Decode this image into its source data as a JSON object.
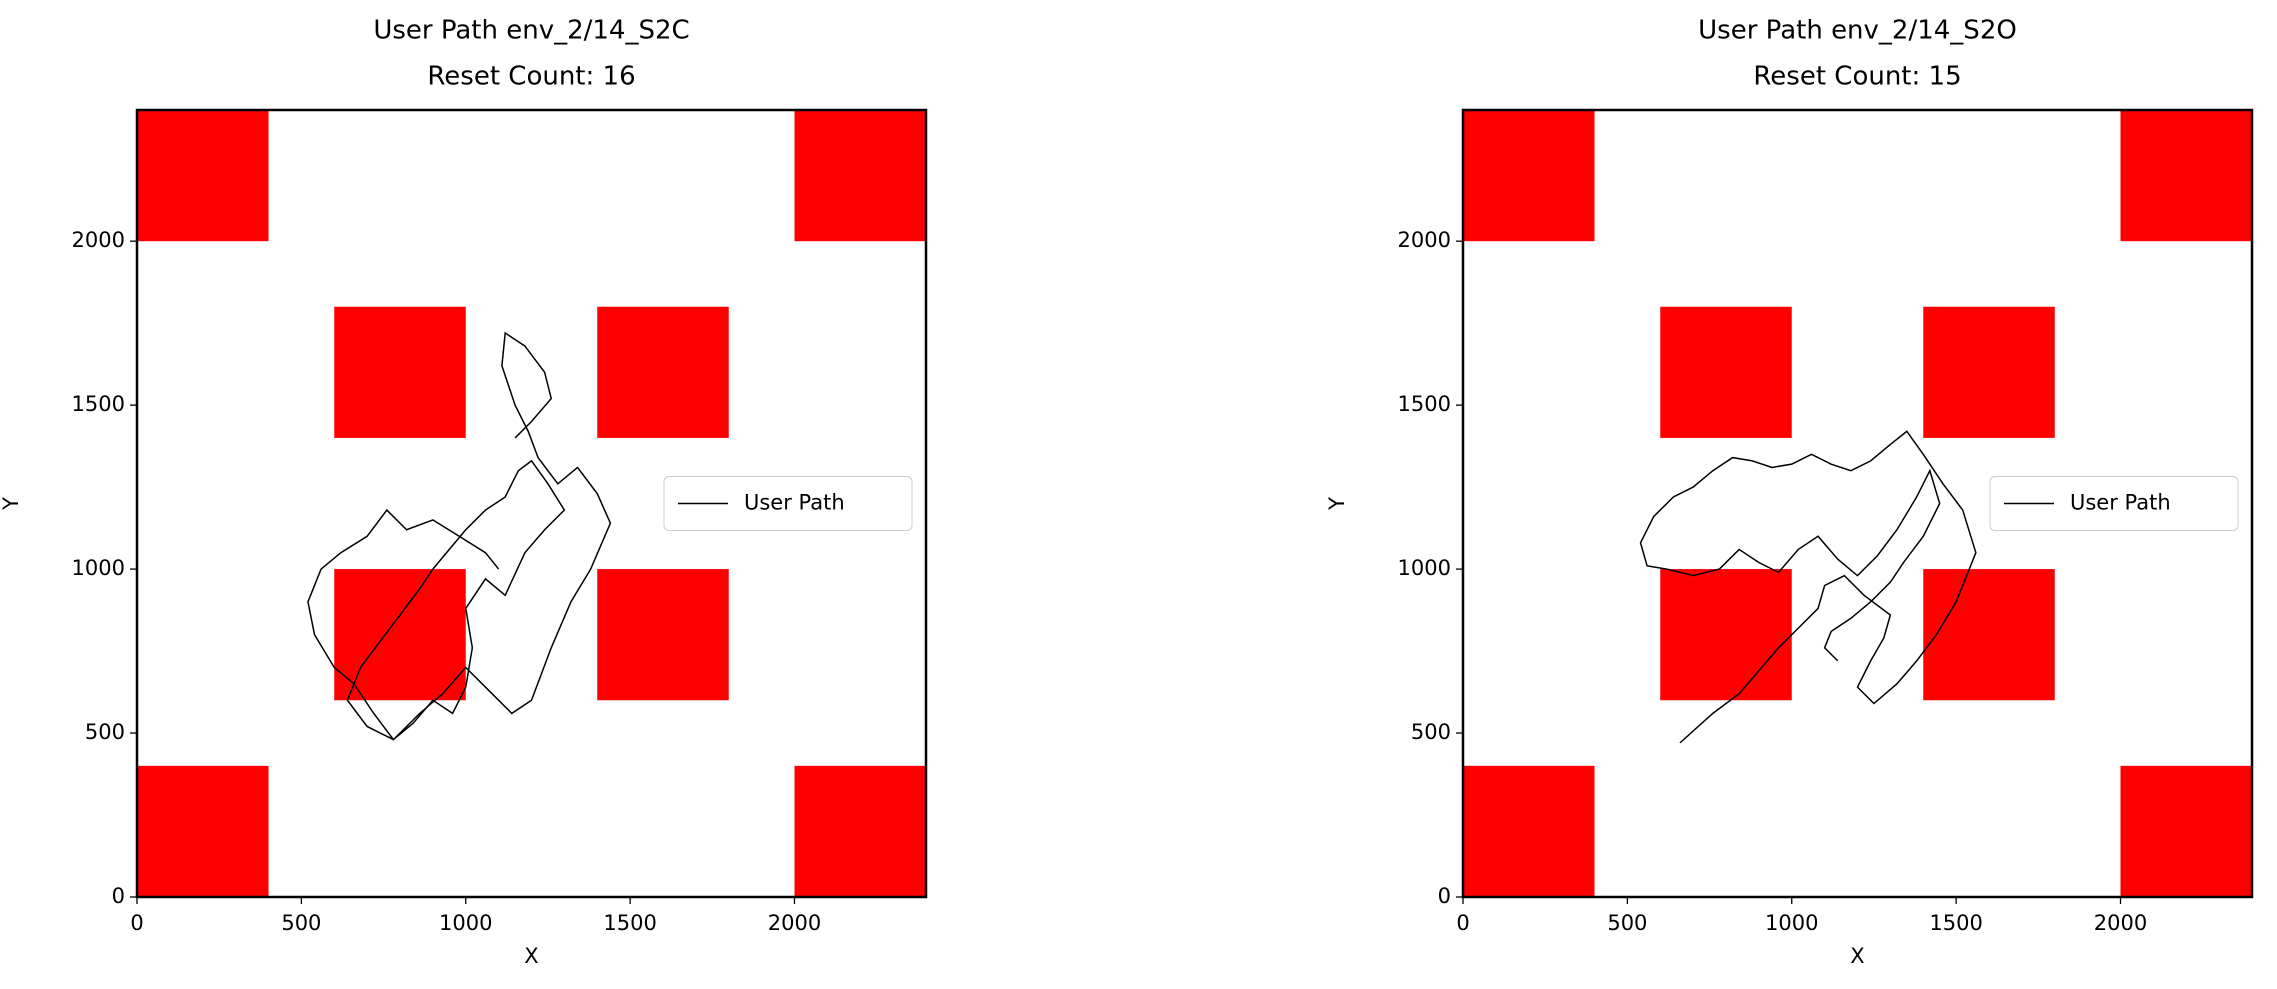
{
  "chart_data": [
    {
      "type": "line",
      "title": "User Path env_2/14_S2C",
      "subtitle": "Reset Count: 16",
      "x_label": "X",
      "y_label": "Y",
      "xlim": [
        0,
        2400
      ],
      "ylim": [
        0,
        2400
      ],
      "xticks": [
        0,
        500,
        1000,
        1500,
        2000
      ],
      "yticks": [
        0,
        500,
        1000,
        1500,
        2000
      ],
      "legend": "center right",
      "obstacle_color": "#ff0000",
      "obstacles": [
        {
          "x": [
            0,
            400
          ],
          "y": [
            2000,
            2400
          ]
        },
        {
          "x": [
            2000,
            2400
          ],
          "y": [
            2000,
            2400
          ]
        },
        {
          "x": [
            600,
            1000
          ],
          "y": [
            1400,
            1800
          ]
        },
        {
          "x": [
            1400,
            1800
          ],
          "y": [
            1400,
            1800
          ]
        },
        {
          "x": [
            600,
            1000
          ],
          "y": [
            600,
            1000
          ]
        },
        {
          "x": [
            1400,
            1800
          ],
          "y": [
            600,
            1000
          ]
        },
        {
          "x": [
            0,
            400
          ],
          "y": [
            0,
            400
          ]
        },
        {
          "x": [
            2000,
            2400
          ],
          "y": [
            0,
            400
          ]
        }
      ],
      "series": [
        {
          "name": "User Path",
          "color": "#000000",
          "x": [
            1100,
            1060,
            980,
            900,
            820,
            760,
            700,
            620,
            560,
            520,
            540,
            600,
            660,
            720,
            780,
            840,
            900,
            960,
            1000,
            1020,
            1000,
            1060,
            1120,
            1180,
            1240,
            1300,
            1250,
            1200,
            1160,
            1120,
            1060,
            1000,
            950,
            900,
            860,
            800,
            740,
            680,
            640,
            700,
            780,
            860,
            930,
            1000,
            1080,
            1140,
            1200,
            1260,
            1320,
            1380,
            1440,
            1400,
            1340,
            1280,
            1220,
            1190,
            1150,
            1110,
            1120,
            1180,
            1240,
            1260,
            1200,
            1150
          ],
          "y": [
            1000,
            1050,
            1100,
            1150,
            1120,
            1180,
            1100,
            1050,
            1000,
            900,
            800,
            700,
            650,
            560,
            480,
            530,
            600,
            560,
            640,
            760,
            880,
            970,
            920,
            1050,
            1120,
            1180,
            1260,
            1330,
            1300,
            1220,
            1180,
            1120,
            1060,
            1000,
            940,
            860,
            780,
            700,
            600,
            520,
            480,
            560,
            620,
            700,
            620,
            560,
            600,
            760,
            900,
            1000,
            1140,
            1230,
            1310,
            1260,
            1340,
            1420,
            1500,
            1620,
            1720,
            1680,
            1600,
            1520,
            1450,
            1400
          ]
        }
      ]
    },
    {
      "type": "line",
      "title": "User Path env_2/14_S2O",
      "subtitle": "Reset Count: 15",
      "x_label": "X",
      "y_label": "Y",
      "xlim": [
        0,
        2400
      ],
      "ylim": [
        0,
        2400
      ],
      "xticks": [
        0,
        500,
        1000,
        1500,
        2000
      ],
      "yticks": [
        0,
        500,
        1000,
        1500,
        2000
      ],
      "legend": "center right",
      "obstacle_color": "#ff0000",
      "obstacles": [
        {
          "x": [
            0,
            400
          ],
          "y": [
            2000,
            2400
          ]
        },
        {
          "x": [
            2000,
            2400
          ],
          "y": [
            2000,
            2400
          ]
        },
        {
          "x": [
            600,
            1000
          ],
          "y": [
            1400,
            1800
          ]
        },
        {
          "x": [
            1400,
            1800
          ],
          "y": [
            1400,
            1800
          ]
        },
        {
          "x": [
            600,
            1000
          ],
          "y": [
            600,
            1000
          ]
        },
        {
          "x": [
            1400,
            1800
          ],
          "y": [
            600,
            1000
          ]
        },
        {
          "x": [
            0,
            400
          ],
          "y": [
            0,
            400
          ]
        },
        {
          "x": [
            2000,
            2400
          ],
          "y": [
            0,
            400
          ]
        }
      ],
      "series": [
        {
          "name": "User Path",
          "color": "#000000",
          "x": [
            660,
            760,
            840,
            900,
            960,
            1020,
            1080,
            1100,
            1160,
            1220,
            1300,
            1280,
            1240,
            1200,
            1250,
            1320,
            1380,
            1440,
            1500,
            1560,
            1520,
            1460,
            1400,
            1350,
            1300,
            1240,
            1180,
            1120,
            1060,
            1000,
            940,
            880,
            820,
            760,
            700,
            640,
            580,
            540,
            560,
            620,
            700,
            780,
            840,
            900,
            960,
            1020,
            1080,
            1140,
            1200,
            1260,
            1320,
            1380,
            1420,
            1450,
            1400,
            1340,
            1300,
            1240,
            1180,
            1120,
            1100,
            1140
          ],
          "y": [
            470,
            560,
            620,
            690,
            760,
            820,
            880,
            950,
            980,
            920,
            860,
            790,
            720,
            640,
            590,
            650,
            720,
            800,
            900,
            1050,
            1180,
            1260,
            1350,
            1420,
            1380,
            1330,
            1300,
            1320,
            1350,
            1320,
            1310,
            1330,
            1340,
            1300,
            1250,
            1220,
            1160,
            1080,
            1010,
            1000,
            980,
            1000,
            1060,
            1020,
            990,
            1060,
            1100,
            1030,
            980,
            1040,
            1120,
            1220,
            1300,
            1200,
            1100,
            1020,
            960,
            900,
            850,
            810,
            760,
            720
          ]
        }
      ]
    }
  ]
}
